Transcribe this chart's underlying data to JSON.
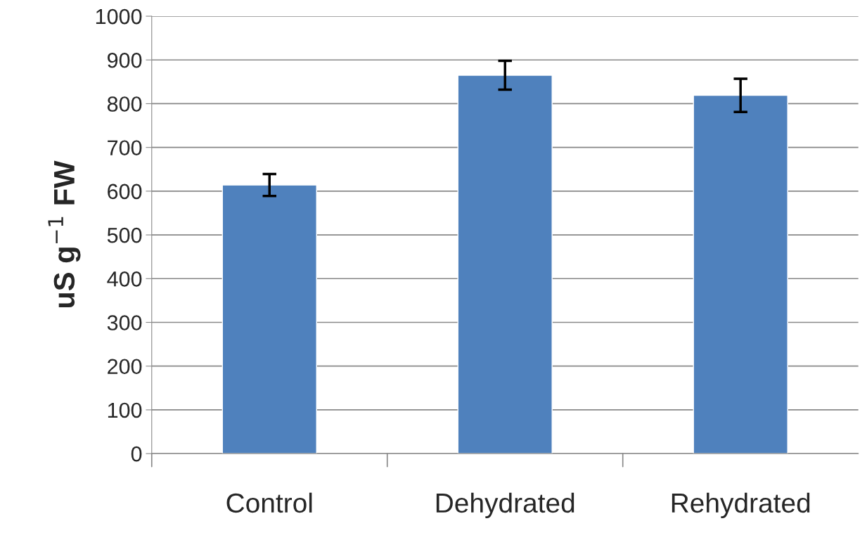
{
  "chart_data": {
    "type": "bar",
    "ylabel": "uS g$^{−1}$ FW",
    "categories": [
      "Control",
      "Dehydrated",
      "Rehydrated"
    ],
    "values": [
      614,
      865,
      819
    ],
    "errors": [
      25,
      33,
      38
    ],
    "color": "#4f81bd",
    "ylim": [
      0,
      1000
    ],
    "yticks": [
      0,
      100,
      200,
      300,
      400,
      500,
      600,
      700,
      800,
      900,
      1000
    ],
    "grid": "y"
  }
}
